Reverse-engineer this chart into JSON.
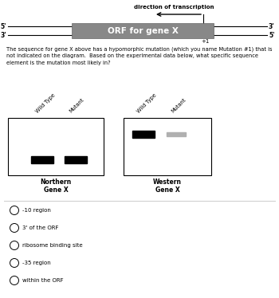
{
  "background_color": "#ffffff",
  "dna_label_5top": "5'",
  "dna_label_3bot": "3'",
  "dna_label_3right": "3'",
  "dna_label_5right": "5'",
  "orf_label": "ORF for gene X",
  "plus1_label": "+1",
  "direction_label": "direction of transcription",
  "body_text_line1": "The sequence for gene X above has a hypomorphic mutation (which you name Mutation #1) that is",
  "body_text_line2": "not indicated on the diagram.  Based on the experimental data below, what specific sequence",
  "body_text_line3": "element is the mutation most likely in?",
  "northern_label": "Northern\nGene X",
  "western_label": "Western\nGene X",
  "options": [
    "-10 region",
    "3' of the ORF",
    "ribosome binding site",
    "-35 region",
    "within the ORF"
  ],
  "orf_box_color": "#888888",
  "orf_text_color": "#ffffff",
  "separator_color": "#cccccc",
  "north_wt_label": "Wild Type",
  "north_mut_label": "Mutant",
  "west_wt_label": "Wild Type",
  "west_mut_label": "Mutant"
}
